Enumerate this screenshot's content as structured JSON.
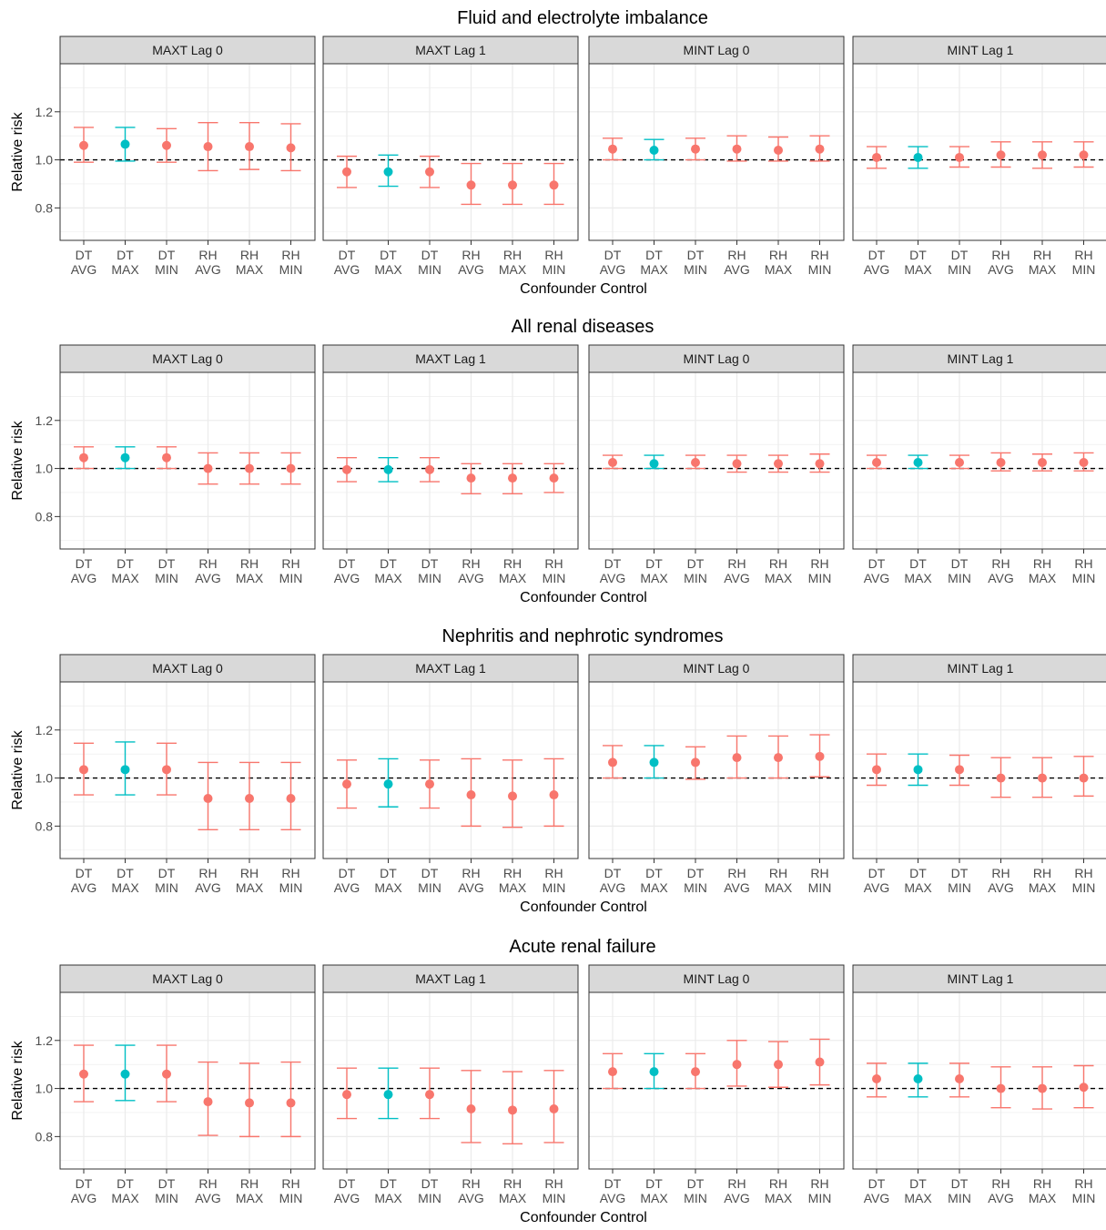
{
  "chart_data": {
    "type": "errorbar",
    "ylabel": "Relative risk",
    "xlabel": "Confounder Control",
    "ylim": [
      0.665,
      1.4
    ],
    "yticks": [
      0.8,
      1.0,
      1.2
    ],
    "yticklabels": [
      "0.8",
      "1.0",
      "1.2"
    ],
    "reference_line": 1.0,
    "grid": true,
    "highlight_category": "DT MAX",
    "colors": {
      "default": "#F8766D",
      "highlight": "#00BFC4",
      "strip_bg": "#D9D9D9",
      "panel_border": "#333333",
      "grid": "#EBEBEB"
    },
    "categories": [
      {
        "line1": "DT",
        "line2": "AVG"
      },
      {
        "line1": "DT",
        "line2": "MAX"
      },
      {
        "line1": "DT",
        "line2": "MIN"
      },
      {
        "line1": "RH",
        "line2": "AVG"
      },
      {
        "line1": "RH",
        "line2": "MAX"
      },
      {
        "line1": "RH",
        "line2": "MIN"
      }
    ],
    "panel_titles": [
      "MAXT Lag 0",
      "MAXT Lag 1",
      "MINT Lag 0",
      "MINT Lag 1"
    ],
    "outcomes": [
      {
        "title": "Fluid and electrolyte imbalance",
        "panels": [
          {
            "estimate": [
              1.06,
              1.065,
              1.06,
              1.055,
              1.055,
              1.05
            ],
            "lower": [
              0.99,
              0.995,
              0.99,
              0.955,
              0.96,
              0.955
            ],
            "upper": [
              1.135,
              1.135,
              1.13,
              1.155,
              1.155,
              1.15
            ]
          },
          {
            "estimate": [
              0.95,
              0.95,
              0.95,
              0.895,
              0.895,
              0.895
            ],
            "lower": [
              0.885,
              0.89,
              0.885,
              0.815,
              0.815,
              0.815
            ],
            "upper": [
              1.015,
              1.02,
              1.015,
              0.985,
              0.985,
              0.985
            ]
          },
          {
            "estimate": [
              1.045,
              1.04,
              1.045,
              1.045,
              1.04,
              1.045
            ],
            "lower": [
              1.0,
              1.0,
              1.0,
              0.995,
              0.995,
              0.995
            ],
            "upper": [
              1.09,
              1.085,
              1.09,
              1.1,
              1.095,
              1.1
            ]
          },
          {
            "estimate": [
              1.01,
              1.01,
              1.01,
              1.02,
              1.02,
              1.02
            ],
            "lower": [
              0.965,
              0.965,
              0.97,
              0.97,
              0.965,
              0.97
            ],
            "upper": [
              1.055,
              1.055,
              1.055,
              1.075,
              1.075,
              1.075
            ]
          }
        ]
      },
      {
        "title": "All renal diseases",
        "panels": [
          {
            "estimate": [
              1.045,
              1.045,
              1.045,
              1.0,
              1.0,
              1.0
            ],
            "lower": [
              1.0,
              1.0,
              1.0,
              0.935,
              0.935,
              0.935
            ],
            "upper": [
              1.09,
              1.09,
              1.09,
              1.065,
              1.065,
              1.065
            ]
          },
          {
            "estimate": [
              0.995,
              0.995,
              0.995,
              0.96,
              0.96,
              0.96
            ],
            "lower": [
              0.945,
              0.945,
              0.945,
              0.895,
              0.895,
              0.9
            ],
            "upper": [
              1.045,
              1.045,
              1.045,
              1.02,
              1.02,
              1.02
            ]
          },
          {
            "estimate": [
              1.025,
              1.02,
              1.025,
              1.02,
              1.02,
              1.02
            ],
            "lower": [
              1.0,
              1.0,
              1.0,
              0.985,
              0.985,
              0.985
            ],
            "upper": [
              1.055,
              1.055,
              1.055,
              1.055,
              1.055,
              1.06
            ]
          },
          {
            "estimate": [
              1.025,
              1.025,
              1.025,
              1.025,
              1.025,
              1.025
            ],
            "lower": [
              1.0,
              1.0,
              1.0,
              0.99,
              0.99,
              0.99
            ],
            "upper": [
              1.055,
              1.055,
              1.055,
              1.065,
              1.06,
              1.065
            ]
          }
        ]
      },
      {
        "title": "Nephritis and nephrotic syndromes",
        "panels": [
          {
            "estimate": [
              1.035,
              1.035,
              1.035,
              0.915,
              0.915,
              0.915
            ],
            "lower": [
              0.93,
              0.93,
              0.93,
              0.785,
              0.785,
              0.785
            ],
            "upper": [
              1.145,
              1.15,
              1.145,
              1.065,
              1.065,
              1.065
            ]
          },
          {
            "estimate": [
              0.975,
              0.975,
              0.975,
              0.93,
              0.925,
              0.93
            ],
            "lower": [
              0.875,
              0.88,
              0.875,
              0.8,
              0.795,
              0.8
            ],
            "upper": [
              1.075,
              1.08,
              1.075,
              1.08,
              1.075,
              1.08
            ]
          },
          {
            "estimate": [
              1.065,
              1.065,
              1.065,
              1.085,
              1.085,
              1.09
            ],
            "lower": [
              1.0,
              1.0,
              0.995,
              1.0,
              1.0,
              1.005
            ],
            "upper": [
              1.135,
              1.135,
              1.13,
              1.175,
              1.175,
              1.18
            ]
          },
          {
            "estimate": [
              1.035,
              1.035,
              1.035,
              1.0,
              1.0,
              1.0
            ],
            "lower": [
              0.97,
              0.97,
              0.97,
              0.92,
              0.92,
              0.925
            ],
            "upper": [
              1.1,
              1.1,
              1.095,
              1.085,
              1.085,
              1.09
            ]
          }
        ]
      },
      {
        "title": "Acute renal failure",
        "panels": [
          {
            "estimate": [
              1.06,
              1.06,
              1.06,
              0.945,
              0.94,
              0.94
            ],
            "lower": [
              0.945,
              0.95,
              0.945,
              0.805,
              0.8,
              0.8
            ],
            "upper": [
              1.18,
              1.18,
              1.18,
              1.11,
              1.105,
              1.11
            ]
          },
          {
            "estimate": [
              0.975,
              0.975,
              0.975,
              0.915,
              0.91,
              0.915
            ],
            "lower": [
              0.875,
              0.875,
              0.875,
              0.775,
              0.77,
              0.775
            ],
            "upper": [
              1.085,
              1.085,
              1.085,
              1.075,
              1.07,
              1.075
            ]
          },
          {
            "estimate": [
              1.07,
              1.07,
              1.07,
              1.1,
              1.1,
              1.11
            ],
            "lower": [
              1.0,
              1.0,
              1.0,
              1.01,
              1.005,
              1.015
            ],
            "upper": [
              1.145,
              1.145,
              1.145,
              1.2,
              1.195,
              1.205
            ]
          },
          {
            "estimate": [
              1.04,
              1.04,
              1.04,
              1.0,
              1.0,
              1.005
            ],
            "lower": [
              0.965,
              0.965,
              0.965,
              0.92,
              0.915,
              0.92
            ],
            "upper": [
              1.105,
              1.105,
              1.105,
              1.09,
              1.09,
              1.095
            ]
          }
        ]
      }
    ]
  }
}
